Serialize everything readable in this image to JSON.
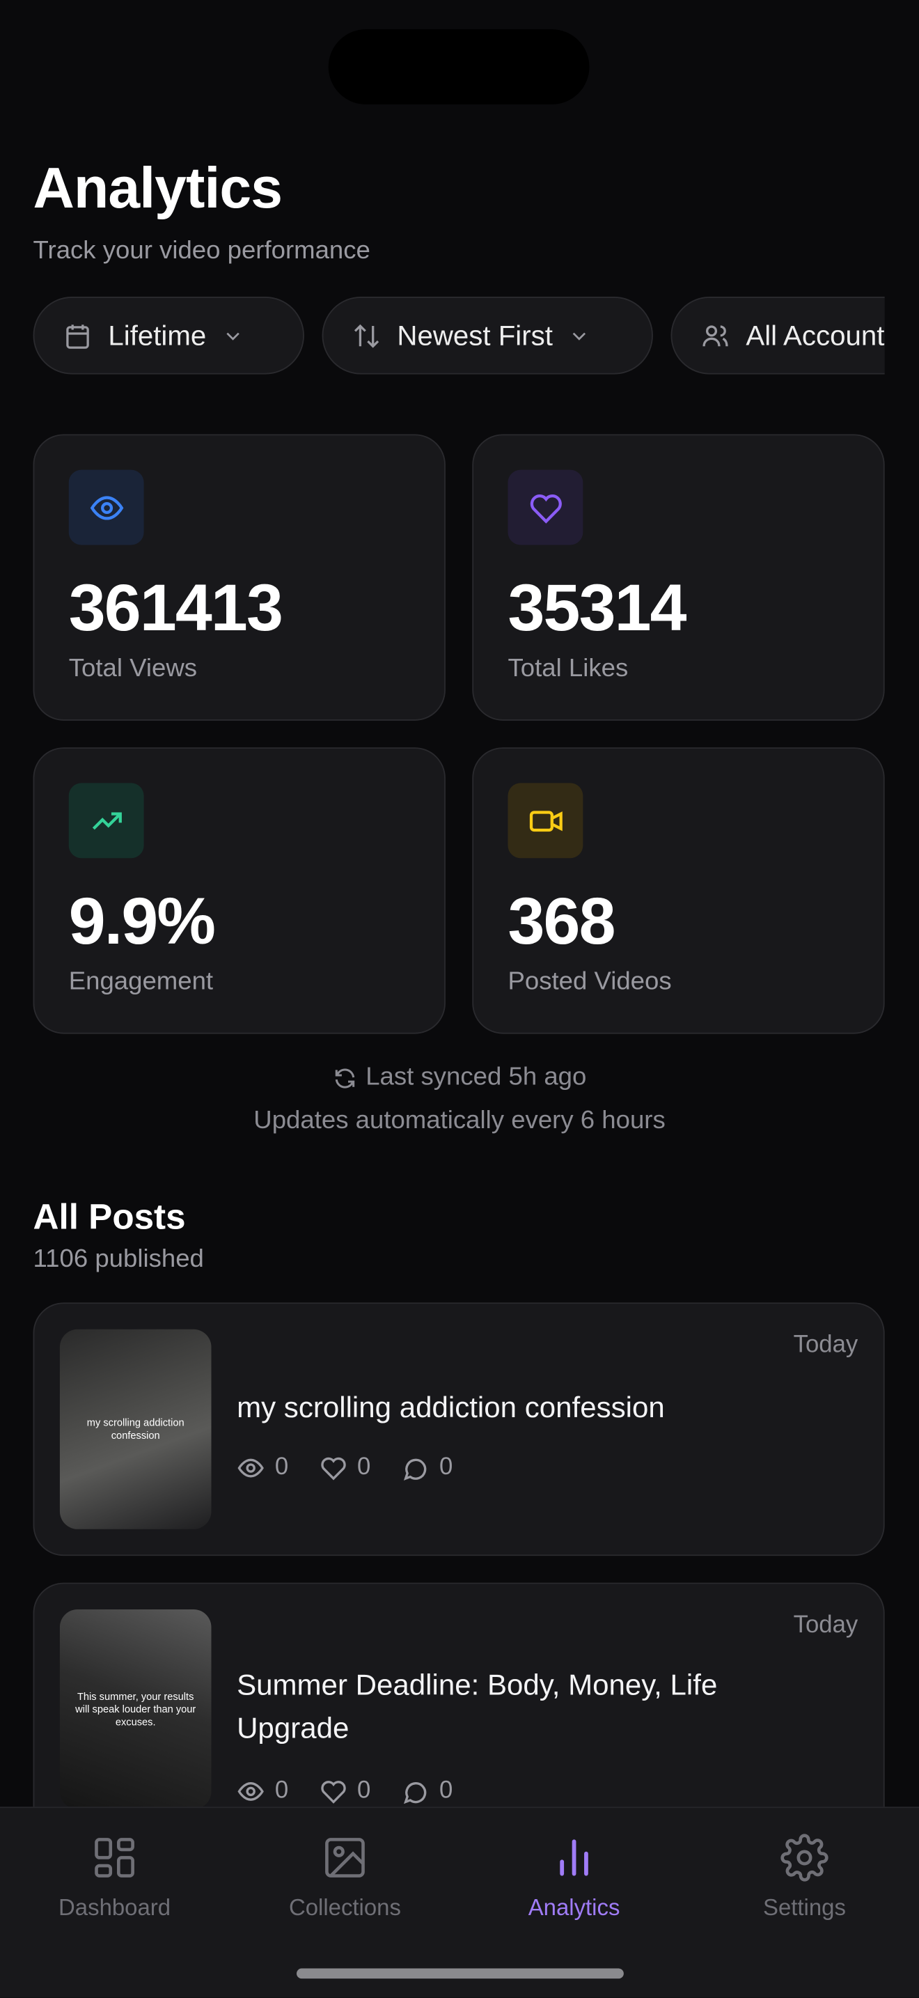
{
  "header": {
    "title": "Analytics",
    "subtitle": "Track your video performance"
  },
  "filters": [
    {
      "icon": "calendar-icon",
      "label": "Lifetime"
    },
    {
      "icon": "sort-arrows-icon",
      "label": "Newest First"
    },
    {
      "icon": "users-icon",
      "label": "All Accounts"
    }
  ],
  "stats": [
    {
      "icon": "eye-icon",
      "value": "361413",
      "label": "Total Views",
      "color": "#3b82f6"
    },
    {
      "icon": "heart-icon",
      "value": "35314",
      "label": "Total Likes",
      "color": "#8b5cf6"
    },
    {
      "icon": "trending-up-icon",
      "value": "9.9%",
      "label": "Engagement",
      "color": "#34d399"
    },
    {
      "icon": "video-camera-icon",
      "value": "368",
      "label": "Posted Videos",
      "color": "#facc15"
    }
  ],
  "sync": {
    "last_synced": "Last synced 5h ago",
    "note": "Updates automatically every 6 hours"
  },
  "posts_section": {
    "title": "All Posts",
    "count": "1106 published"
  },
  "posts": [
    {
      "title": "my scrolling addiction confession",
      "thumb_text": "my scrolling addiction confession",
      "date": "Today",
      "views": "0",
      "likes": "0",
      "comments": "0"
    },
    {
      "title": "Summer Deadline: Body, Money, Life Upgrade",
      "thumb_text": "This summer, your results will speak louder than your excuses.",
      "date": "Today",
      "views": "0",
      "likes": "0",
      "comments": "0"
    }
  ],
  "nav": [
    {
      "label": "Dashboard",
      "icon": "dashboard-icon",
      "active": false
    },
    {
      "label": "Collections",
      "icon": "image-icon",
      "active": false
    },
    {
      "label": "Analytics",
      "icon": "bar-chart-icon",
      "active": true
    },
    {
      "label": "Settings",
      "icon": "gear-icon",
      "active": false
    }
  ],
  "accent": "#a07cf7"
}
